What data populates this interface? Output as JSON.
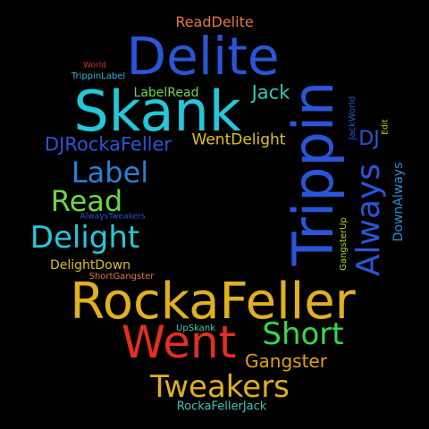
{
  "words": [
    {
      "text": "ReadDelite",
      "color": "#e07a3a"
    },
    {
      "text": "Delite",
      "color": "#2a55d6"
    },
    {
      "text": "World",
      "color": "#d62a2a"
    },
    {
      "text": "TrippinLabel",
      "color": "#3ab0d6"
    },
    {
      "text": "Skank",
      "color": "#24c8d8"
    },
    {
      "text": "LabelRead",
      "color": "#6ad64a"
    },
    {
      "text": "Jack",
      "color": "#36c9b6"
    },
    {
      "text": "Trippin",
      "color": "#2a55d6"
    },
    {
      "text": "JackWorld",
      "color": "#2a55d6"
    },
    {
      "text": "Edit",
      "color": "#c8d62a"
    },
    {
      "text": "DJRockaFeller",
      "color": "#2a55d6"
    },
    {
      "text": "WentDelight",
      "color": "#e0c020"
    },
    {
      "text": "DJ",
      "color": "#2a55d6"
    },
    {
      "text": "Label",
      "color": "#2a7fd6"
    },
    {
      "text": "Always",
      "color": "#2a55d6"
    },
    {
      "text": "DownAlways",
      "color": "#2a8fd6"
    },
    {
      "text": "Read",
      "color": "#6ad64a"
    },
    {
      "text": "AlwaysTweakers",
      "color": "#2a55d6"
    },
    {
      "text": "GangsterUp",
      "color": "#a8d62a"
    },
    {
      "text": "Delight",
      "color": "#24c8d8"
    },
    {
      "text": "DelightDown",
      "color": "#e0c020"
    },
    {
      "text": "ShortGangster",
      "color": "#e07a3a"
    },
    {
      "text": "RockaFeller",
      "color": "#e0b020"
    },
    {
      "text": "UpSkank",
      "color": "#36c9b6"
    },
    {
      "text": "Went",
      "color": "#e03020"
    },
    {
      "text": "Short",
      "color": "#3ad64a"
    },
    {
      "text": "Gangster",
      "color": "#e0a020"
    },
    {
      "text": "Tweakers",
      "color": "#e0b020"
    },
    {
      "text": "RockaFellerJack",
      "color": "#36c9b6"
    }
  ]
}
